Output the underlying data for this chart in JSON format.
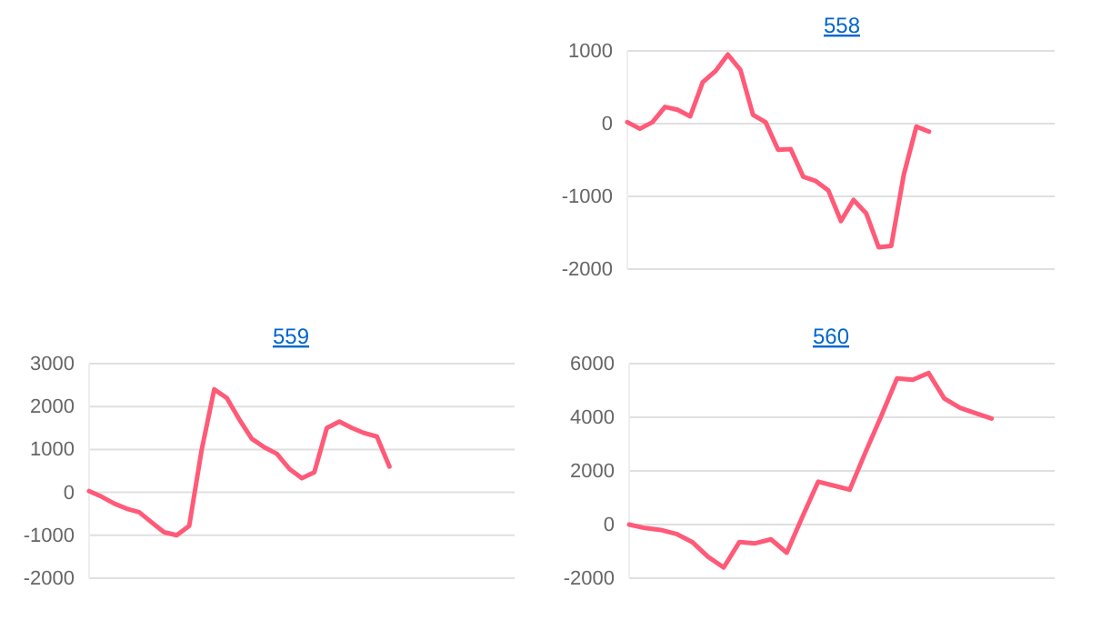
{
  "chart_data": [
    {
      "type": "line",
      "title": "558",
      "categories": [
        null,
        null,
        null,
        null,
        null,
        null,
        null,
        null,
        null,
        null,
        null,
        null,
        null,
        null,
        null,
        null,
        null,
        null,
        null,
        null,
        null,
        null,
        null,
        null,
        null,
        null,
        null,
        null,
        null,
        null,
        null,
        null,
        null,
        null,
        null
      ],
      "series": [
        {
          "color": "#ff5a78",
          "values": [
            20,
            -70,
            20,
            230,
            190,
            100,
            570,
            720,
            950,
            740,
            120,
            20,
            -360,
            -350,
            -730,
            -790,
            -920,
            -1340,
            -1050,
            -1230,
            -1700,
            -1680,
            -700,
            -40,
            -110,
            null,
            null,
            null,
            null,
            null,
            null,
            null,
            null,
            null,
            null
          ]
        }
      ],
      "ylim": [
        -2000,
        1000
      ],
      "yticks": [
        -2000,
        -1000,
        0,
        1000
      ],
      "grid": "y",
      "tick_labels": "y"
    },
    {
      "type": "line",
      "title": "559",
      "categories": [
        null,
        null,
        null,
        null,
        null,
        null,
        null,
        null,
        null,
        null,
        null,
        null,
        null,
        null,
        null,
        null,
        null,
        null,
        null,
        null,
        null,
        null,
        null,
        null,
        null,
        null,
        null,
        null,
        null,
        null,
        null,
        null,
        null,
        null,
        null
      ],
      "series": [
        {
          "color": "#ff5a78",
          "values": [
            30,
            -100,
            -260,
            -380,
            -460,
            -700,
            -930,
            -1000,
            -780,
            1000,
            2400,
            2200,
            1700,
            1250,
            1050,
            900,
            550,
            330,
            470,
            1500,
            1650,
            1500,
            1380,
            1300,
            600,
            null,
            null,
            null,
            null,
            null,
            null,
            null,
            null,
            null,
            null
          ]
        }
      ],
      "ylim": [
        -2000,
        3000
      ],
      "yticks": [
        -2000,
        -1000,
        0,
        1000,
        2000,
        3000
      ],
      "grid": "y",
      "tick_labels": "y"
    },
    {
      "type": "line",
      "title": "560",
      "categories": [
        null,
        null,
        null,
        null,
        null,
        null,
        null,
        null,
        null,
        null,
        null,
        null,
        null,
        null,
        null,
        null,
        null,
        null,
        null,
        null,
        null,
        null,
        null,
        null,
        null,
        null,
        null,
        null
      ],
      "series": [
        {
          "color": "#ff5a78",
          "values": [
            0,
            -130,
            -200,
            -350,
            -650,
            -1200,
            -1600,
            -650,
            -700,
            -550,
            -1050,
            300,
            1600,
            1450,
            1300,
            2700,
            4050,
            5450,
            5400,
            5650,
            4700,
            4350,
            4150,
            3950,
            null,
            null,
            null,
            null
          ]
        }
      ],
      "ylim": [
        -2000,
        6000
      ],
      "yticks": [
        -2000,
        0,
        2000,
        4000,
        6000
      ],
      "grid": "y",
      "tick_labels": "y"
    }
  ]
}
